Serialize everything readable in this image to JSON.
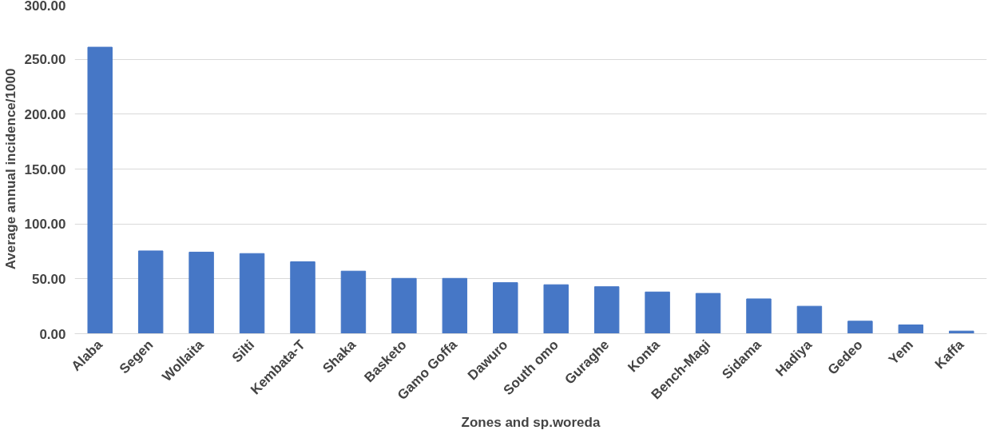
{
  "chart_data": {
    "type": "bar",
    "xlabel": "Zones and sp.woreda",
    "ylabel": "Average annual incidence/1000",
    "categories": [
      "Alaba",
      "Segen",
      "Wollaita",
      "Silti",
      "Kembata-T",
      "Shaka",
      "Basketo",
      "Gamo Goffa",
      "Dawuro",
      "South omo",
      "Guraghe",
      "Konta",
      "Bench-Magi",
      "Sidama",
      "Hadiya",
      "Gedeo",
      "Yem",
      "Kaffa"
    ],
    "values": [
      261,
      75.4,
      74.3,
      73,
      65.5,
      57,
      50.4,
      50.4,
      46.5,
      44.6,
      42.8,
      38,
      36.7,
      31.7,
      25,
      11.4,
      8,
      2.4
    ],
    "color": "#4677c6",
    "ylim": [
      0,
      300
    ],
    "yticks": [
      {
        "value": 0,
        "label": "0.00"
      },
      {
        "value": 50,
        "label": "50.00"
      },
      {
        "value": 100,
        "label": "100.00"
      },
      {
        "value": 150,
        "label": "150.00"
      },
      {
        "value": 200,
        "label": "200.00"
      },
      {
        "value": 250,
        "label": "250.00"
      },
      {
        "value": 300,
        "label": "300.00"
      }
    ],
    "grid": "y"
  }
}
